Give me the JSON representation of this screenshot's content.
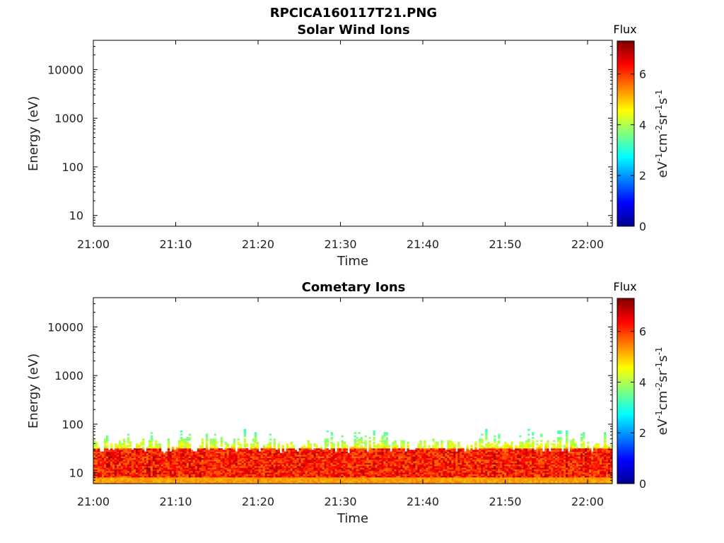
{
  "figure_title": "RPCICA160117T21.PNG",
  "chart_data": [
    {
      "type": "heatmap",
      "title": "Solar Wind Ions",
      "xlabel": "Time",
      "ylabel": "Energy (eV)",
      "x_ticks": [
        "21:00",
        "21:10",
        "21:20",
        "21:30",
        "21:40",
        "21:50",
        "22:00"
      ],
      "xlim": [
        "21:00",
        "22:03"
      ],
      "y_scale": "log",
      "y_ticks": [
        "10",
        "100",
        "1000",
        "10000"
      ],
      "ylim": [
        6,
        40000
      ],
      "colorbar": {
        "title": "Flux",
        "label": "eV-1cm-2sr-1s-1",
        "ticks": [
          "0",
          "2",
          "4",
          "6"
        ],
        "range": [
          0,
          7.3
        ],
        "colormap": "jet"
      },
      "data_present": false,
      "description_of_signal": null
    },
    {
      "type": "heatmap",
      "title": "Cometary Ions",
      "xlabel": "Time",
      "ylabel": "Energy (eV)",
      "x_ticks": [
        "21:00",
        "21:10",
        "21:20",
        "21:30",
        "21:40",
        "21:50",
        "22:00"
      ],
      "xlim": [
        "21:00",
        "22:03"
      ],
      "y_scale": "log",
      "y_ticks": [
        "10",
        "100",
        "1000",
        "10000"
      ],
      "ylim": [
        6,
        40000
      ],
      "colorbar": {
        "title": "Flux",
        "label": "eV-1cm-2sr-1s-1",
        "ticks": [
          "0",
          "2",
          "4",
          "6"
        ],
        "range": [
          0,
          7.3
        ],
        "colormap": "jet"
      },
      "data_present": true,
      "band": {
        "energy_min_eV": 6,
        "core_energy_range_eV": [
          8,
          30
        ],
        "core_flux_range": [
          5.5,
          7.0
        ],
        "envelope_energy_max_eV": 80,
        "envelope_flux_range": [
          3.0,
          5.0
        ]
      }
    }
  ]
}
